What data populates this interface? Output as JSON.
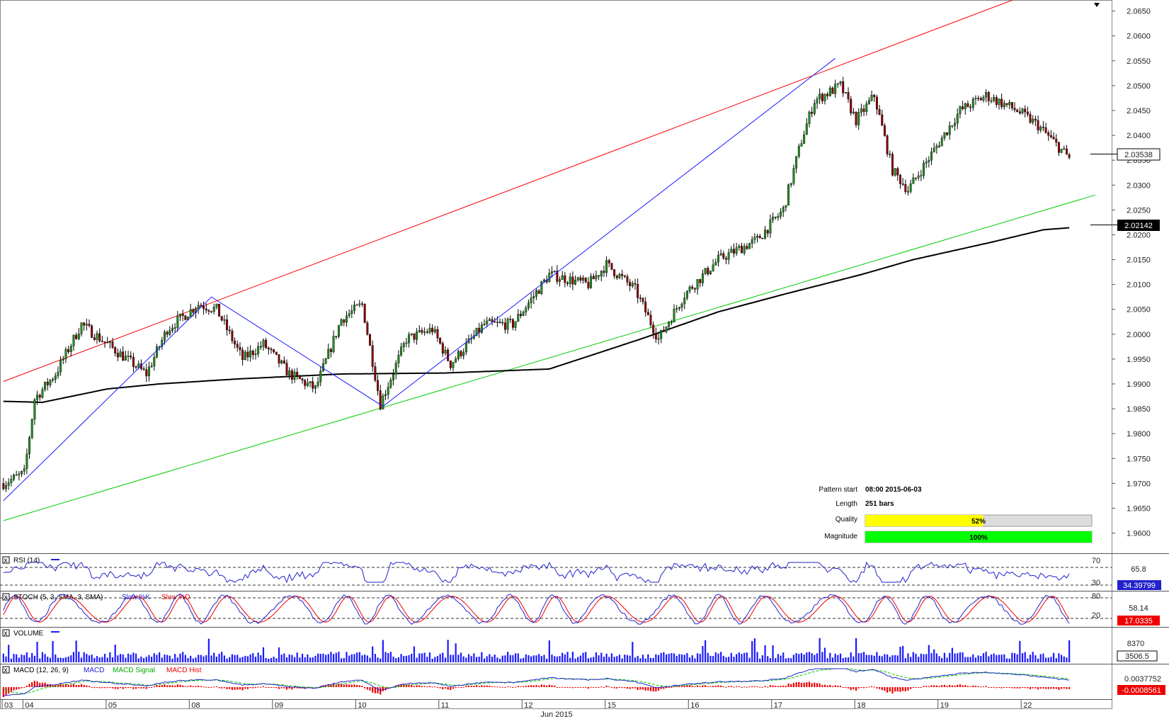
{
  "chart_data": {
    "type": "candlestick",
    "instrument_note": "",
    "month_label": "Jun 2015",
    "x_labels": [
      "03",
      "04",
      "05",
      "08",
      "09",
      "10",
      "11",
      "12",
      "15",
      "16",
      "17",
      "18",
      "19",
      "22"
    ],
    "price_axis": {
      "ticks": [
        "2.0650",
        "2.0600",
        "2.0550",
        "2.0500",
        "2.0450",
        "2.0400",
        "2.0350",
        "2.0300",
        "2.0250",
        "2.0200",
        "2.0150",
        "2.0100",
        "2.0050",
        "2.0000",
        "1.9950",
        "1.9900",
        "1.9850",
        "1.9800",
        "1.9750",
        "1.9700",
        "1.9650",
        "1.9600"
      ],
      "ylim": [
        1.9568,
        2.0658
      ],
      "current_price": "2.03538",
      "ma_value": "2.02142"
    },
    "price_waypoints": [
      [
        0,
        1.97
      ],
      [
        8,
        1.972
      ],
      [
        12,
        1.987
      ],
      [
        20,
        1.992
      ],
      [
        30,
        2.002
      ],
      [
        40,
        1.998
      ],
      [
        55,
        1.992
      ],
      [
        63,
        2.001
      ],
      [
        75,
        2.006
      ],
      [
        82,
        2.005
      ],
      [
        92,
        1.995
      ],
      [
        100,
        1.998
      ],
      [
        110,
        1.992
      ],
      [
        120,
        1.989
      ],
      [
        130,
        2.003
      ],
      [
        138,
        2.006
      ],
      [
        145,
        1.986
      ],
      [
        155,
        1.999
      ],
      [
        165,
        2.001
      ],
      [
        172,
        1.994
      ],
      [
        185,
        2.002
      ],
      [
        196,
        2.002
      ],
      [
        210,
        2.012
      ],
      [
        225,
        2.01
      ],
      [
        232,
        2.014
      ],
      [
        243,
        2.009
      ],
      [
        252,
        1.999
      ],
      [
        262,
        2.008
      ],
      [
        275,
        2.015
      ],
      [
        290,
        2.019
      ],
      [
        300,
        2.025
      ],
      [
        307,
        2.039
      ],
      [
        312,
        2.047
      ],
      [
        322,
        2.05
      ],
      [
        328,
        2.043
      ],
      [
        335,
        2.048
      ],
      [
        342,
        2.033
      ],
      [
        348,
        2.029
      ],
      [
        358,
        2.037
      ],
      [
        368,
        2.045
      ],
      [
        378,
        2.048
      ],
      [
        390,
        2.045
      ],
      [
        398,
        2.042
      ],
      [
        410,
        2.0354
      ]
    ],
    "ma_waypoints": [
      [
        0,
        1.9865
      ],
      [
        15,
        1.9863
      ],
      [
        40,
        1.989
      ],
      [
        60,
        1.99
      ],
      [
        90,
        1.991
      ],
      [
        130,
        1.992
      ],
      [
        170,
        1.9922
      ],
      [
        210,
        1.993
      ],
      [
        245,
        1.999
      ],
      [
        275,
        2.0045
      ],
      [
        300,
        2.008
      ],
      [
        330,
        2.012
      ],
      [
        350,
        2.015
      ],
      [
        380,
        2.0185
      ],
      [
        400,
        2.021
      ],
      [
        410,
        2.02142
      ]
    ],
    "channel_lines": [
      {
        "color": "#ff0000",
        "from": [
          0,
          1.9905
        ],
        "to": [
          420,
          2.0735
        ]
      },
      {
        "color": "#00cc00",
        "from": [
          0,
          1.9625
        ],
        "to": [
          420,
          2.028
        ]
      }
    ],
    "zigzag": [
      [
        0,
        1.9665
      ],
      [
        80,
        2.0075
      ],
      [
        146,
        1.9855
      ],
      [
        320,
        2.0555
      ]
    ],
    "pattern_info": {
      "pattern_start_label": "Pattern start",
      "pattern_start": "08:00 2015-06-03",
      "length_label": "Length",
      "length": "251 bars",
      "quality_label": "Quality",
      "quality": 52,
      "quality_text": "52%",
      "magnitude_label": "Magnitude",
      "magnitude": 100,
      "magnitude_text": "100%"
    },
    "indicators": {
      "rsi": {
        "label": "RSI (14)",
        "levels": [
          "70",
          "30"
        ],
        "mid_tick": "65.8",
        "value": "34.39799",
        "ylim": [
          0,
          100
        ]
      },
      "stoch": {
        "label": "STOCH (5, 3, SMA, 3, SMA)",
        "legend": [
          "Slow %K",
          "Slow %D"
        ],
        "levels": [
          "80",
          "20"
        ],
        "mid_tick": "58.14",
        "value": "17.0335",
        "ylim": [
          0,
          100
        ]
      },
      "volume": {
        "label": "VOLUME",
        "tick": "8370",
        "value": "3506.5"
      },
      "macd": {
        "label": "MACD (12, 26, 9)",
        "legend": [
          "MACD",
          "MACD Signal",
          "MACD Hist"
        ],
        "tick": "0.0037752",
        "value": "-0.0008561"
      }
    },
    "colors": {
      "up_candle": "#228b22",
      "down_candle": "#8b0000",
      "ma": "#000000",
      "resistance": "#ff0000",
      "support": "#00cc00",
      "zigzag": "#1a1aff",
      "rsi": "#2222cc",
      "stoch_k": "#2222cc",
      "stoch_d": "#ee0000",
      "volume": "#1a1aff",
      "macd": "#2222cc",
      "macd_signal": "#00cc00",
      "macd_hist": "#ee0000"
    }
  }
}
